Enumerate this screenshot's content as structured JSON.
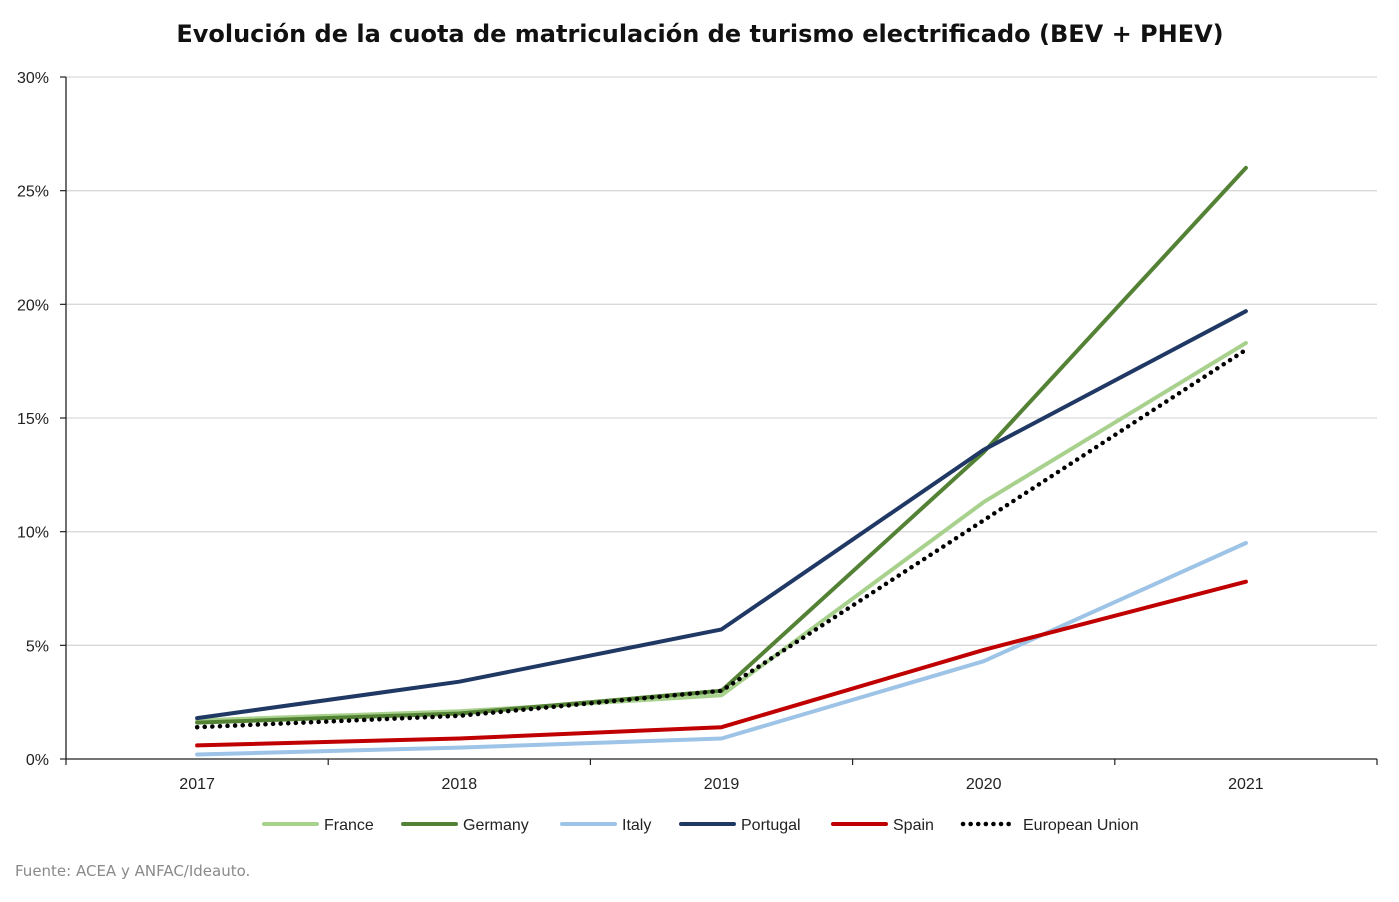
{
  "chart_data": {
    "type": "line",
    "title": "Evolución de la cuota de matriculación de turismo electrificado (BEV + PHEV)",
    "source": "Fuente: ACEA y ANFAC/Ideauto.",
    "categories": [
      "2017",
      "2018",
      "2019",
      "2020",
      "2021"
    ],
    "ylim": [
      0,
      30
    ],
    "yticks": [
      0,
      5,
      10,
      15,
      20,
      25,
      30
    ],
    "ytick_labels": [
      "0%",
      "5%",
      "10%",
      "15%",
      "20%",
      "25%",
      "30%"
    ],
    "grid": true,
    "legend_position": "bottom",
    "series": [
      {
        "name": "France",
        "values": [
          1.7,
          2.1,
          2.8,
          11.3,
          18.3
        ],
        "color": "#a9d18e",
        "dash": "solid"
      },
      {
        "name": "Germany",
        "values": [
          1.6,
          2.0,
          3.0,
          13.5,
          26.0
        ],
        "color": "#548235",
        "dash": "solid"
      },
      {
        "name": "Italy",
        "values": [
          0.2,
          0.5,
          0.9,
          4.3,
          9.5
        ],
        "color": "#9dc3e6",
        "dash": "solid"
      },
      {
        "name": "Portugal",
        "values": [
          1.8,
          3.4,
          5.7,
          13.6,
          19.7
        ],
        "color": "#203864",
        "dash": "solid"
      },
      {
        "name": "Spain",
        "values": [
          0.6,
          0.9,
          1.4,
          4.8,
          7.8
        ],
        "color": "#c00000",
        "dash": "solid"
      },
      {
        "name": "European Union",
        "values": [
          1.4,
          1.9,
          3.0,
          10.5,
          18.0
        ],
        "color": "#000000",
        "dash": "dotted"
      }
    ]
  }
}
